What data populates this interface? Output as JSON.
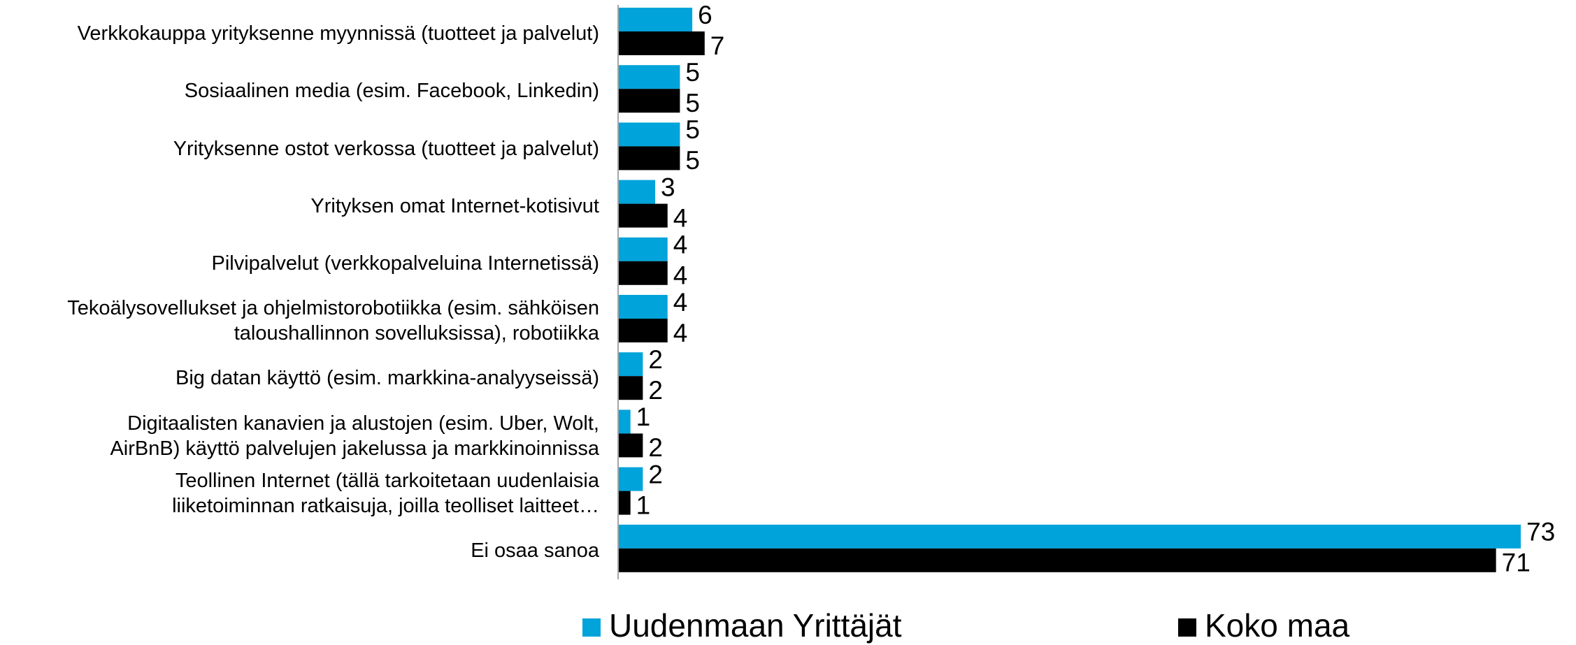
{
  "chart_data": {
    "type": "bar",
    "orientation": "horizontal",
    "categories": [
      "Verkkokauppa yrityksenne myynnissä (tuotteet ja palvelut)",
      "Sosiaalinen media (esim. Facebook, Linkedin)",
      "Yrityksenne ostot verkossa (tuotteet ja palvelut)",
      "Yrityksen omat Internet-kotisivut",
      "Pilvipalvelut  (verkkopalveluina Internetissä)",
      "Tekoälysovellukset ja ohjelmistorobotiikka (esim. sähköisen\ntaloushallinnon sovelluksissa), robotiikka",
      "Big datan käyttö (esim. markkina-analyyseissä)",
      "Digitaalisten kanavien ja alustojen (esim. Uber, Wolt,\nAirBnB) käyttö palvelujen jakelussa ja markkinoinnissa",
      "Teollinen Internet (tällä tarkoitetaan uudenlaisia\nliiketoiminnan ratkaisuja, joilla teolliset laitteet…",
      "Ei osaa sanoa"
    ],
    "series": [
      {
        "name": "Uudenmaan Yrittäjät",
        "color": "#00a3da",
        "values": [
          6,
          5,
          5,
          3,
          4,
          4,
          2,
          1,
          2,
          73
        ]
      },
      {
        "name": "Koko maa",
        "color": "#000000",
        "values": [
          7,
          5,
          5,
          4,
          4,
          4,
          2,
          2,
          1,
          71
        ]
      }
    ],
    "xlim": [
      0,
      73
    ]
  }
}
